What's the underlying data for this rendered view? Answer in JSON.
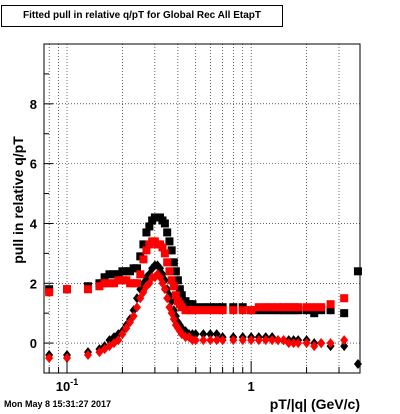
{
  "chart_data": {
    "type": "scatter",
    "title": "Fitted pull in relative q/pT  for Global Rec All EtapT",
    "xlabel": "pT/|q| (GeV/c)",
    "ylabel": "pull in relative q/pT",
    "xscale": "log",
    "xlim": [
      0.075,
      3.9
    ],
    "ylim": [
      -1.0,
      10.0
    ],
    "grid": true,
    "x_ticks": [
      {
        "v": 0.1,
        "label": "10",
        "sup": "-1"
      },
      {
        "v": 1,
        "label": "1",
        "sup": ""
      }
    ],
    "y_ticks": [
      0,
      2,
      4,
      6,
      8
    ],
    "series": [
      {
        "marker": "square",
        "color": "#000000",
        "points": [
          [
            0.08,
            1.8
          ],
          [
            0.1,
            1.8
          ],
          [
            0.13,
            1.9
          ],
          [
            0.15,
            2.0
          ],
          [
            0.16,
            2.2
          ],
          [
            0.17,
            2.3
          ],
          [
            0.18,
            2.3
          ],
          [
            0.19,
            2.3
          ],
          [
            0.2,
            2.4
          ],
          [
            0.21,
            2.4
          ],
          [
            0.22,
            2.4
          ],
          [
            0.23,
            2.5
          ],
          [
            0.24,
            2.5
          ],
          [
            0.25,
            2.9
          ],
          [
            0.26,
            3.3
          ],
          [
            0.27,
            3.7
          ],
          [
            0.28,
            3.9
          ],
          [
            0.29,
            4.1
          ],
          [
            0.3,
            4.2
          ],
          [
            0.31,
            4.2
          ],
          [
            0.32,
            4.2
          ],
          [
            0.33,
            4.1
          ],
          [
            0.34,
            4.0
          ],
          [
            0.35,
            3.7
          ],
          [
            0.36,
            3.4
          ],
          [
            0.37,
            3.1
          ],
          [
            0.38,
            2.7
          ],
          [
            0.39,
            2.4
          ],
          [
            0.4,
            2.1
          ],
          [
            0.41,
            1.8
          ],
          [
            0.42,
            1.6
          ],
          [
            0.44,
            1.4
          ],
          [
            0.46,
            1.3
          ],
          [
            0.48,
            1.3
          ],
          [
            0.5,
            1.2
          ],
          [
            0.55,
            1.2
          ],
          [
            0.6,
            1.2
          ],
          [
            0.65,
            1.2
          ],
          [
            0.7,
            1.2
          ],
          [
            0.8,
            1.2
          ],
          [
            0.9,
            1.2
          ],
          [
            1.0,
            1.1
          ],
          [
            1.1,
            1.1
          ],
          [
            1.2,
            1.1
          ],
          [
            1.3,
            1.1
          ],
          [
            1.4,
            1.1
          ],
          [
            1.5,
            1.1
          ],
          [
            1.6,
            1.1
          ],
          [
            1.7,
            1.1
          ],
          [
            1.8,
            1.1
          ],
          [
            2.0,
            1.1
          ],
          [
            2.2,
            1.0
          ],
          [
            2.4,
            1.1
          ],
          [
            2.7,
            1.1
          ],
          [
            3.2,
            1.0
          ],
          [
            3.8,
            2.4
          ]
        ]
      },
      {
        "marker": "diamond",
        "color": "#000000",
        "points": [
          [
            0.08,
            -0.4
          ],
          [
            0.1,
            -0.4
          ],
          [
            0.13,
            -0.3
          ],
          [
            0.15,
            -0.2
          ],
          [
            0.16,
            -0.1
          ],
          [
            0.17,
            0.1
          ],
          [
            0.18,
            0.2
          ],
          [
            0.19,
            0.3
          ],
          [
            0.2,
            0.4
          ],
          [
            0.21,
            0.6
          ],
          [
            0.22,
            0.8
          ],
          [
            0.23,
            1.1
          ],
          [
            0.24,
            1.5
          ],
          [
            0.25,
            1.8
          ],
          [
            0.26,
            2.0
          ],
          [
            0.27,
            2.2
          ],
          [
            0.28,
            2.3
          ],
          [
            0.29,
            2.5
          ],
          [
            0.3,
            2.6
          ],
          [
            0.31,
            2.6
          ],
          [
            0.32,
            2.5
          ],
          [
            0.33,
            2.3
          ],
          [
            0.34,
            2.1
          ],
          [
            0.35,
            1.8
          ],
          [
            0.36,
            1.6
          ],
          [
            0.37,
            1.4
          ],
          [
            0.38,
            1.1
          ],
          [
            0.39,
            0.9
          ],
          [
            0.4,
            0.7
          ],
          [
            0.41,
            0.6
          ],
          [
            0.42,
            0.5
          ],
          [
            0.44,
            0.4
          ],
          [
            0.46,
            0.3
          ],
          [
            0.48,
            0.3
          ],
          [
            0.5,
            0.3
          ],
          [
            0.55,
            0.3
          ],
          [
            0.6,
            0.3
          ],
          [
            0.65,
            0.3
          ],
          [
            0.7,
            0.2
          ],
          [
            0.8,
            0.2
          ],
          [
            0.9,
            0.2
          ],
          [
            1.0,
            0.2
          ],
          [
            1.1,
            0.2
          ],
          [
            1.2,
            0.2
          ],
          [
            1.3,
            0.2
          ],
          [
            1.4,
            0.1
          ],
          [
            1.5,
            0.1
          ],
          [
            1.6,
            0.1
          ],
          [
            1.7,
            0.1
          ],
          [
            1.8,
            0.1
          ],
          [
            2.0,
            0.1
          ],
          [
            2.2,
            0.0
          ],
          [
            2.4,
            0.0
          ],
          [
            2.7,
            -0.1
          ],
          [
            3.2,
            -0.1
          ],
          [
            3.8,
            -0.7
          ]
        ]
      },
      {
        "marker": "square",
        "color": "#ff0000",
        "points": [
          [
            0.08,
            1.7
          ],
          [
            0.1,
            1.8
          ],
          [
            0.13,
            1.8
          ],
          [
            0.15,
            1.9
          ],
          [
            0.16,
            2.0
          ],
          [
            0.17,
            2.0
          ],
          [
            0.18,
            2.0
          ],
          [
            0.19,
            2.1
          ],
          [
            0.2,
            2.1
          ],
          [
            0.21,
            2.1
          ],
          [
            0.22,
            2.0
          ],
          [
            0.23,
            2.0
          ],
          [
            0.24,
            2.0
          ],
          [
            0.25,
            2.3
          ],
          [
            0.26,
            2.8
          ],
          [
            0.27,
            3.1
          ],
          [
            0.28,
            3.3
          ],
          [
            0.29,
            3.4
          ],
          [
            0.3,
            3.4
          ],
          [
            0.31,
            3.3
          ],
          [
            0.32,
            3.3
          ],
          [
            0.33,
            3.2
          ],
          [
            0.34,
            3.0
          ],
          [
            0.35,
            2.7
          ],
          [
            0.36,
            2.4
          ],
          [
            0.37,
            2.1
          ],
          [
            0.38,
            1.9
          ],
          [
            0.39,
            1.6
          ],
          [
            0.4,
            1.4
          ],
          [
            0.41,
            1.3
          ],
          [
            0.42,
            1.2
          ],
          [
            0.44,
            1.1
          ],
          [
            0.46,
            1.1
          ],
          [
            0.48,
            1.1
          ],
          [
            0.5,
            1.1
          ],
          [
            0.55,
            1.1
          ],
          [
            0.6,
            1.1
          ],
          [
            0.65,
            1.1
          ],
          [
            0.7,
            1.1
          ],
          [
            0.8,
            1.1
          ],
          [
            0.9,
            1.1
          ],
          [
            1.0,
            1.1
          ],
          [
            1.1,
            1.2
          ],
          [
            1.2,
            1.2
          ],
          [
            1.3,
            1.2
          ],
          [
            1.4,
            1.2
          ],
          [
            1.5,
            1.2
          ],
          [
            1.6,
            1.2
          ],
          [
            1.7,
            1.2
          ],
          [
            1.8,
            1.2
          ],
          [
            2.0,
            1.2
          ],
          [
            2.2,
            1.2
          ],
          [
            2.4,
            1.2
          ],
          [
            2.7,
            1.3
          ],
          [
            3.2,
            1.5
          ]
        ]
      },
      {
        "marker": "diamond",
        "color": "#ff0000",
        "points": [
          [
            0.08,
            -0.5
          ],
          [
            0.1,
            -0.5
          ],
          [
            0.13,
            -0.4
          ],
          [
            0.15,
            -0.3
          ],
          [
            0.16,
            -0.2
          ],
          [
            0.17,
            -0.1
          ],
          [
            0.18,
            0.0
          ],
          [
            0.19,
            0.1
          ],
          [
            0.2,
            0.3
          ],
          [
            0.21,
            0.5
          ],
          [
            0.22,
            0.7
          ],
          [
            0.23,
            0.9
          ],
          [
            0.24,
            1.2
          ],
          [
            0.25,
            1.5
          ],
          [
            0.26,
            1.7
          ],
          [
            0.27,
            1.9
          ],
          [
            0.28,
            2.0
          ],
          [
            0.29,
            2.2
          ],
          [
            0.3,
            2.2
          ],
          [
            0.31,
            2.3
          ],
          [
            0.32,
            2.2
          ],
          [
            0.33,
            2.0
          ],
          [
            0.34,
            1.8
          ],
          [
            0.35,
            1.5
          ],
          [
            0.36,
            1.2
          ],
          [
            0.37,
            1.0
          ],
          [
            0.38,
            0.8
          ],
          [
            0.39,
            0.6
          ],
          [
            0.4,
            0.5
          ],
          [
            0.41,
            0.4
          ],
          [
            0.42,
            0.3
          ],
          [
            0.44,
            0.2
          ],
          [
            0.46,
            0.2
          ],
          [
            0.48,
            0.1
          ],
          [
            0.5,
            0.1
          ],
          [
            0.55,
            0.1
          ],
          [
            0.6,
            0.1
          ],
          [
            0.65,
            0.1
          ],
          [
            0.7,
            0.1
          ],
          [
            0.8,
            0.1
          ],
          [
            0.9,
            0.1
          ],
          [
            1.0,
            0.1
          ],
          [
            1.1,
            0.1
          ],
          [
            1.2,
            0.1
          ],
          [
            1.3,
            0.1
          ],
          [
            1.4,
            0.1
          ],
          [
            1.5,
            0.1
          ],
          [
            1.6,
            0.0
          ],
          [
            1.7,
            0.0
          ],
          [
            1.8,
            0.0
          ],
          [
            2.0,
            0.0
          ],
          [
            2.2,
            -0.1
          ],
          [
            2.4,
            0.0
          ],
          [
            2.7,
            0.0
          ],
          [
            3.2,
            0.1
          ]
        ]
      }
    ]
  },
  "footer_timestamp": "Mon May  8 15:31:27 2017"
}
